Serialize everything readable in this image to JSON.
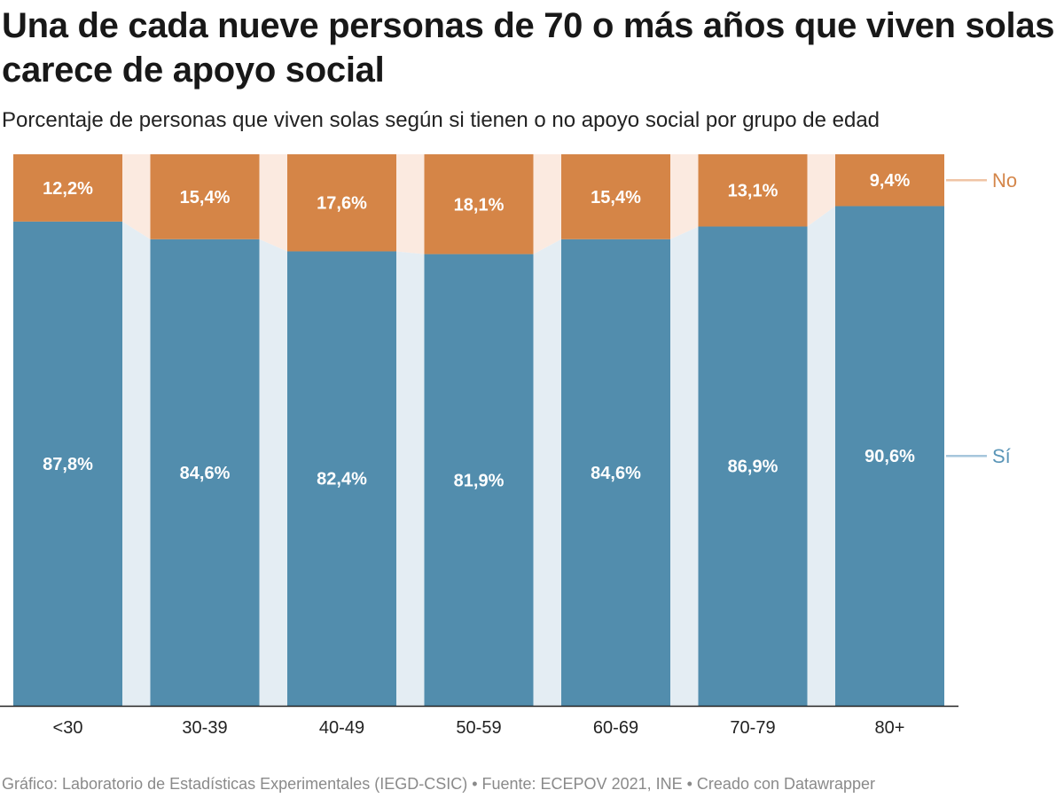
{
  "header": {
    "title": "Una de cada nueve personas de 70 o más años que viven solas carece de apoyo social",
    "subtitle": "Porcentaje de personas que viven solas según si tienen o no apoyo social por grupo de edad"
  },
  "footer": {
    "text": "Gráfico: Laboratorio de Estadísticas Experimentales (IEGD-CSIC) • Fuente: ECEPOV 2021, INE • Creado con Datawrapper"
  },
  "colors": {
    "si": "#528dad",
    "no": "#d58547",
    "si_gap": "#e4edf3",
    "no_gap": "#fbeae0",
    "si_legend": "#a6c6dc",
    "no_legend": "#f0c4a6",
    "axis": "#222222"
  },
  "chart_data": {
    "type": "bar",
    "stacked": true,
    "title": "Una de cada nueve personas de 70 o más años que viven solas carece de apoyo social",
    "subtitle": "Porcentaje de personas que viven solas según si tienen o no apoyo social por grupo de edad",
    "categories": [
      "<30",
      "30-39",
      "40-49",
      "50-59",
      "60-69",
      "70-79",
      "80+"
    ],
    "series": [
      {
        "name": "Sí",
        "values": [
          87.8,
          84.6,
          82.4,
          81.9,
          84.6,
          86.9,
          90.6
        ],
        "labels": [
          "87,8%",
          "84,6%",
          "82,4%",
          "81,9%",
          "84,6%",
          "86,9%",
          "90,6%"
        ]
      },
      {
        "name": "No",
        "values": [
          12.2,
          15.4,
          17.6,
          18.1,
          15.4,
          13.1,
          9.4
        ],
        "labels": [
          "12,2%",
          "15,4%",
          "17,6%",
          "18,1%",
          "15,4%",
          "13,1%",
          "9,4%"
        ]
      }
    ],
    "ylim": [
      0,
      100
    ],
    "xlabel": "",
    "ylabel": "",
    "legend": "right"
  }
}
